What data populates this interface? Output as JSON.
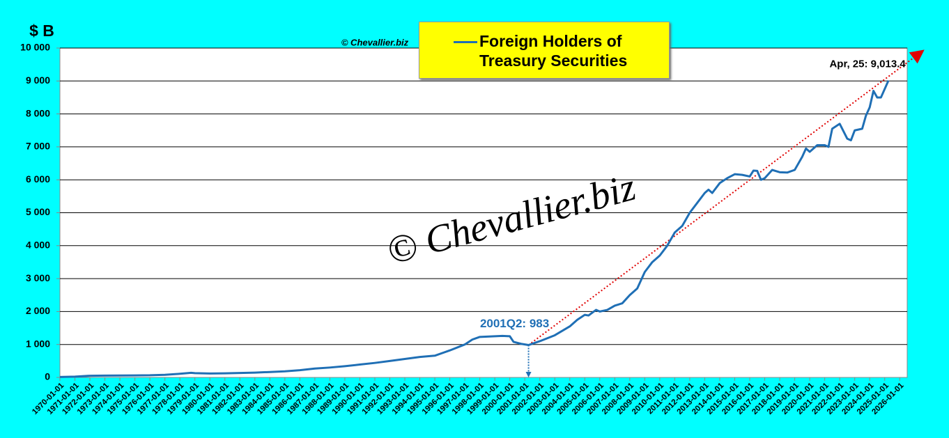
{
  "chart_data": {
    "type": "line",
    "y_label": "$ B",
    "credit": "© Chevallier.biz",
    "watermark": "© Chevallier.biz",
    "x": [
      "1970-01-01",
      "1971-01-01",
      "1972-01-01",
      "1973-01-01",
      "1974-01-01",
      "1975-01-01",
      "1976-01-01",
      "1977-01-01",
      "1978-01-01",
      "1978-10-01",
      "1979-01-01",
      "1980-01-01",
      "1981-01-01",
      "1982-01-01",
      "1983-01-01",
      "1984-01-01",
      "1985-01-01",
      "1986-01-01",
      "1987-01-01",
      "1988-01-01",
      "1989-01-01",
      "1990-01-01",
      "1991-01-01",
      "1992-01-01",
      "1993-01-01",
      "1994-01-01",
      "1995-01-01",
      "1996-01-01",
      "1997-01-01",
      "1997-07-01",
      "1998-01-01",
      "1998-07-01",
      "1999-01-01",
      "1999-07-01",
      "2000-01-01",
      "2000-04-01",
      "2000-10-01",
      "2001-04-01",
      "2002-01-01",
      "2003-01-01",
      "2004-01-01",
      "2004-07-01",
      "2005-01-01",
      "2005-04-01",
      "2005-10-01",
      "2006-01-01",
      "2006-07-01",
      "2007-01-01",
      "2007-07-01",
      "2008-01-01",
      "2008-07-01",
      "2009-01-01",
      "2009-07-01",
      "2010-01-01",
      "2010-07-01",
      "2011-01-01",
      "2011-07-01",
      "2012-01-01",
      "2012-07-01",
      "2013-01-01",
      "2013-04-01",
      "2013-07-01",
      "2014-01-01",
      "2014-07-01",
      "2015-01-01",
      "2015-07-01",
      "2016-01-01",
      "2016-04-01",
      "2016-07-01",
      "2016-10-01",
      "2017-01-01",
      "2017-07-01",
      "2018-01-01",
      "2018-07-01",
      "2019-01-01",
      "2019-07-01",
      "2019-10-01",
      "2020-01-01",
      "2020-07-01",
      "2021-01-01",
      "2021-04-01",
      "2021-07-01",
      "2022-01-01",
      "2022-07-01",
      "2022-10-01",
      "2023-01-01",
      "2023-07-01",
      "2023-10-01",
      "2024-01-01",
      "2024-04-01",
      "2024-07-01",
      "2024-10-01",
      "2025-04-01"
    ],
    "series": [
      {
        "name": "Foreign Holders of Treasury Securities",
        "color": "#1f6fb5",
        "values": [
          14,
          25,
          50,
          55,
          57,
          60,
          65,
          80,
          110,
          140,
          130,
          120,
          125,
          135,
          145,
          165,
          185,
          220,
          270,
          300,
          340,
          390,
          440,
          500,
          560,
          620,
          660,
          820,
          1000,
          1150,
          1230,
          1240,
          1250,
          1260,
          1250,
          1080,
          1020,
          983,
          1100,
          1280,
          1550,
          1750,
          1900,
          1880,
          2050,
          2000,
          2050,
          2180,
          2250,
          2500,
          2700,
          3200,
          3500,
          3700,
          4000,
          4400,
          4600,
          5000,
          5300,
          5600,
          5700,
          5600,
          5900,
          6050,
          6170,
          6150,
          6100,
          6280,
          6270,
          6000,
          6050,
          6300,
          6230,
          6220,
          6300,
          6700,
          6950,
          6850,
          7050,
          7050,
          7000,
          7550,
          7700,
          7250,
          7200,
          7500,
          7550,
          7950,
          8200,
          8700,
          8500,
          8500,
          9013.4
        ]
      }
    ],
    "trend": {
      "color": "#e00000",
      "x": [
        "2001-04-01",
        "2027-07-01"
      ],
      "values": [
        983,
        9900
      ]
    },
    "annotations": [
      {
        "text": "2001Q2: 983",
        "x": "2001-04-01",
        "value": 983,
        "color": "#1f6fb5"
      },
      {
        "text": "Apr, 25: 9,013.4",
        "x": "2025-04-01",
        "value": 9013.4,
        "color": "#000000"
      }
    ],
    "xlim": [
      "1970-01-01",
      "2026-07-01"
    ],
    "xticks": [
      "1970-01-01",
      "1971-01-01",
      "1972-01-01",
      "1973-01-01",
      "1974-01-01",
      "1975-01-01",
      "1976-01-01",
      "1977-01-01",
      "1978-01-01",
      "1979-01-01",
      "1980-01-01",
      "1981-01-01",
      "1982-01-01",
      "1983-01-01",
      "1984-01-01",
      "1985-01-01",
      "1986-01-01",
      "1987-01-01",
      "1988-01-01",
      "1989-01-01",
      "1990-01-01",
      "1991-01-01",
      "1992-01-01",
      "1993-01-01",
      "1994-01-01",
      "1995-01-01",
      "1996-01-01",
      "1997-01-01",
      "1998-01-01",
      "1999-01-01",
      "2000-01-01",
      "2001-01-01",
      "2002-01-01",
      "2003-01-01",
      "2004-01-01",
      "2005-01-01",
      "2006-01-01",
      "2007-01-01",
      "2008-01-01",
      "2009-01-01",
      "2010-01-01",
      "2011-01-01",
      "2012-01-01",
      "2013-01-01",
      "2014-01-01",
      "2015-01-01",
      "2016-01-01",
      "2017-01-01",
      "2018-01-01",
      "2019-01-01",
      "2020-01-01",
      "2021-01-01",
      "2022-01-01",
      "2023-01-01",
      "2024-01-01",
      "2025-01-01",
      "2026-01-01"
    ],
    "ylim": [
      0,
      10000
    ],
    "yticks": [
      0,
      {
        "value": 1000,
        "label": "1 000"
      },
      {
        "value": 2000,
        "label": "2 000"
      },
      {
        "value": 3000,
        "label": "3 000"
      },
      {
        "value": 4000,
        "label": "4 000"
      },
      {
        "value": 5000,
        "label": "5 000"
      },
      {
        "value": 6000,
        "label": "6 000"
      },
      {
        "value": 7000,
        "label": "7 000"
      },
      {
        "value": 8000,
        "label": "8 000"
      },
      {
        "value": 9000,
        "label": "9 000"
      },
      {
        "value": 10000,
        "label": "10 000"
      }
    ],
    "grid": true,
    "background": "#00ffff"
  }
}
